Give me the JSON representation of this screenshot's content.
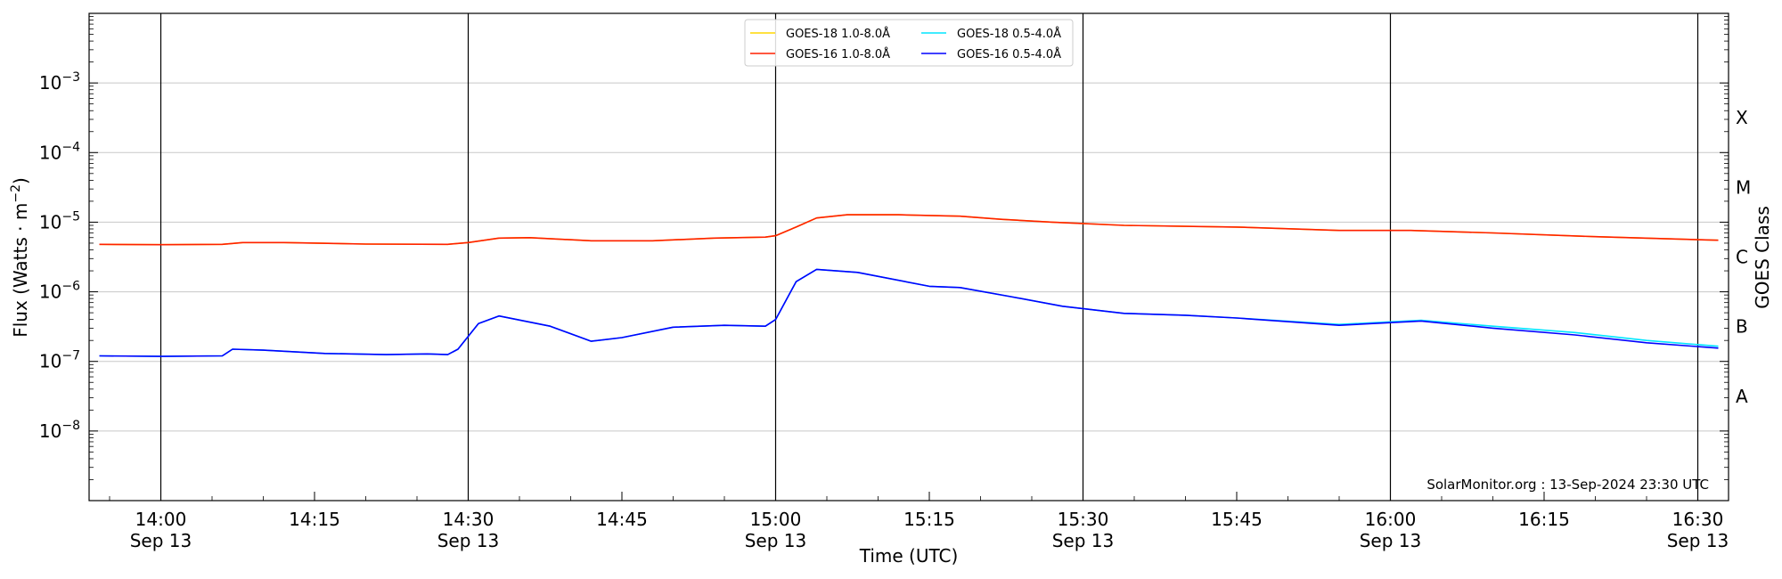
{
  "chart_data": {
    "type": "line",
    "xlabel": "Time (UTC)",
    "ylabel": "Flux (Watts · m",
    "ylabel_sup": "−2",
    "ylabel_tail": ")",
    "right_label": "GOES Class",
    "y_scale": "log",
    "ylim": [
      1e-09,
      0.01
    ],
    "x_domain": [
      "13:53",
      "16:33"
    ],
    "y_ticks": [
      {
        "base": "10",
        "exp": "−3",
        "value": 0.001
      },
      {
        "base": "10",
        "exp": "−4",
        "value": 0.0001
      },
      {
        "base": "10",
        "exp": "−5",
        "value": 1e-05
      },
      {
        "base": "10",
        "exp": "−6",
        "value": 1e-06
      },
      {
        "base": "10",
        "exp": "−7",
        "value": 1e-07
      },
      {
        "base": "10",
        "exp": "−8",
        "value": 1e-08
      }
    ],
    "x_ticks": [
      {
        "time": "14:00",
        "label": "14:00",
        "date": "Sep 13"
      },
      {
        "time": "14:15",
        "label": "14:15",
        "date": ""
      },
      {
        "time": "14:30",
        "label": "14:30",
        "date": "Sep 13"
      },
      {
        "time": "14:45",
        "label": "14:45",
        "date": ""
      },
      {
        "time": "15:00",
        "label": "15:00",
        "date": "Sep 13"
      },
      {
        "time": "15:15",
        "label": "15:15",
        "date": ""
      },
      {
        "time": "15:30",
        "label": "15:30",
        "date": "Sep 13"
      },
      {
        "time": "15:45",
        "label": "15:45",
        "date": ""
      },
      {
        "time": "16:00",
        "label": "16:00",
        "date": "Sep 13"
      },
      {
        "time": "16:15",
        "label": "16:15",
        "date": ""
      },
      {
        "time": "16:30",
        "label": "16:30",
        "date": "Sep 13"
      }
    ],
    "vertical_lines": [
      "14:00",
      "14:30",
      "15:00",
      "15:30",
      "16:00",
      "16:30"
    ],
    "goes_classes": [
      {
        "label": "X",
        "value": 0.000316
      },
      {
        "label": "M",
        "value": 3.16e-05
      },
      {
        "label": "C",
        "value": 3.16e-06
      },
      {
        "label": "B",
        "value": 3.16e-07
      },
      {
        "label": "A",
        "value": 3.16e-08
      }
    ],
    "annotation": "SolarMonitor.org : 13-Sep-2024 23:30 UTC",
    "legend_position": "top-center",
    "grid": "horizontal",
    "series": [
      {
        "name": "GOES-18 1.0-8.0Å",
        "color": "#ffd700",
        "points": [
          [
            "13:54",
            4.8e-06
          ],
          [
            "14:00",
            4.75e-06
          ],
          [
            "14:06",
            4.8e-06
          ],
          [
            "14:08",
            5.1e-06
          ],
          [
            "14:12",
            5.1e-06
          ],
          [
            "14:20",
            4.85e-06
          ],
          [
            "14:28",
            4.8e-06
          ],
          [
            "14:30",
            5.1e-06
          ],
          [
            "14:33",
            5.9e-06
          ],
          [
            "14:36",
            6e-06
          ],
          [
            "14:42",
            5.4e-06
          ],
          [
            "14:48",
            5.4e-06
          ],
          [
            "14:54",
            5.9e-06
          ],
          [
            "14:59",
            6.1e-06
          ],
          [
            "15:00",
            6.4e-06
          ],
          [
            "15:02",
            8.5e-06
          ],
          [
            "15:04",
            1.15e-05
          ],
          [
            "15:07",
            1.28e-05
          ],
          [
            "15:12",
            1.28e-05
          ],
          [
            "15:18",
            1.22e-05
          ],
          [
            "15:22",
            1.1e-05
          ],
          [
            "15:27",
            1e-05
          ],
          [
            "15:34",
            9e-06
          ],
          [
            "15:45",
            8.5e-06
          ],
          [
            "15:55",
            7.6e-06
          ],
          [
            "16:02",
            7.6e-06
          ],
          [
            "16:10",
            7e-06
          ],
          [
            "16:20",
            6.2e-06
          ],
          [
            "16:32",
            5.5e-06
          ]
        ]
      },
      {
        "name": "GOES-18 0.5-4.0Å",
        "color": "#00e5ff",
        "points": [
          [
            "13:54",
            1.2e-07
          ],
          [
            "14:00",
            1.18e-07
          ],
          [
            "14:06",
            1.2e-07
          ],
          [
            "14:07",
            1.5e-07
          ],
          [
            "14:10",
            1.45e-07
          ],
          [
            "14:16",
            1.3e-07
          ],
          [
            "14:22",
            1.25e-07
          ],
          [
            "14:26",
            1.28e-07
          ],
          [
            "14:28",
            1.25e-07
          ],
          [
            "14:29",
            1.5e-07
          ],
          [
            "14:31",
            3.5e-07
          ],
          [
            "14:33",
            4.5e-07
          ],
          [
            "14:38",
            3.2e-07
          ],
          [
            "14:42",
            1.95e-07
          ],
          [
            "14:45",
            2.2e-07
          ],
          [
            "14:50",
            3.1e-07
          ],
          [
            "14:55",
            3.3e-07
          ],
          [
            "14:59",
            3.2e-07
          ],
          [
            "15:00",
            4e-07
          ],
          [
            "15:02",
            1.4e-06
          ],
          [
            "15:04",
            2.1e-06
          ],
          [
            "15:08",
            1.9e-06
          ],
          [
            "15:15",
            1.2e-06
          ],
          [
            "15:18",
            1.15e-06
          ],
          [
            "15:23",
            8.5e-07
          ],
          [
            "15:28",
            6.2e-07
          ],
          [
            "15:34",
            4.9e-07
          ],
          [
            "15:40",
            4.6e-07
          ],
          [
            "15:45",
            4.2e-07
          ],
          [
            "15:55",
            3.4e-07
          ],
          [
            "16:00",
            3.7e-07
          ],
          [
            "16:03",
            3.9e-07
          ],
          [
            "16:10",
            3.2e-07
          ],
          [
            "16:18",
            2.6e-07
          ],
          [
            "16:25",
            2e-07
          ],
          [
            "16:32",
            1.65e-07
          ]
        ]
      },
      {
        "name": "GOES-16 1.0-8.0Å",
        "color": "#ff2000",
        "points": [
          [
            "13:54",
            4.8e-06
          ],
          [
            "14:00",
            4.75e-06
          ],
          [
            "14:06",
            4.8e-06
          ],
          [
            "14:08",
            5.1e-06
          ],
          [
            "14:12",
            5.1e-06
          ],
          [
            "14:20",
            4.85e-06
          ],
          [
            "14:28",
            4.8e-06
          ],
          [
            "14:30",
            5.1e-06
          ],
          [
            "14:33",
            5.9e-06
          ],
          [
            "14:36",
            6e-06
          ],
          [
            "14:42",
            5.4e-06
          ],
          [
            "14:48",
            5.4e-06
          ],
          [
            "14:54",
            5.9e-06
          ],
          [
            "14:59",
            6.1e-06
          ],
          [
            "15:00",
            6.4e-06
          ],
          [
            "15:02",
            8.5e-06
          ],
          [
            "15:04",
            1.15e-05
          ],
          [
            "15:07",
            1.28e-05
          ],
          [
            "15:12",
            1.28e-05
          ],
          [
            "15:18",
            1.22e-05
          ],
          [
            "15:22",
            1.1e-05
          ],
          [
            "15:27",
            1e-05
          ],
          [
            "15:34",
            9e-06
          ],
          [
            "15:45",
            8.5e-06
          ],
          [
            "15:55",
            7.6e-06
          ],
          [
            "16:02",
            7.6e-06
          ],
          [
            "16:10",
            7e-06
          ],
          [
            "16:20",
            6.2e-06
          ],
          [
            "16:32",
            5.5e-06
          ]
        ]
      },
      {
        "name": "GOES-16 0.5-4.0Å",
        "color": "#0000ff",
        "points": [
          [
            "13:54",
            1.2e-07
          ],
          [
            "14:00",
            1.18e-07
          ],
          [
            "14:06",
            1.2e-07
          ],
          [
            "14:07",
            1.5e-07
          ],
          [
            "14:10",
            1.45e-07
          ],
          [
            "14:16",
            1.3e-07
          ],
          [
            "14:22",
            1.25e-07
          ],
          [
            "14:26",
            1.28e-07
          ],
          [
            "14:28",
            1.25e-07
          ],
          [
            "14:29",
            1.5e-07
          ],
          [
            "14:31",
            3.5e-07
          ],
          [
            "14:33",
            4.5e-07
          ],
          [
            "14:38",
            3.2e-07
          ],
          [
            "14:42",
            1.95e-07
          ],
          [
            "14:45",
            2.2e-07
          ],
          [
            "14:50",
            3.1e-07
          ],
          [
            "14:55",
            3.3e-07
          ],
          [
            "14:59",
            3.2e-07
          ],
          [
            "15:00",
            4e-07
          ],
          [
            "15:02",
            1.4e-06
          ],
          [
            "15:04",
            2.1e-06
          ],
          [
            "15:08",
            1.9e-06
          ],
          [
            "15:15",
            1.2e-06
          ],
          [
            "15:18",
            1.15e-06
          ],
          [
            "15:23",
            8.5e-07
          ],
          [
            "15:28",
            6.2e-07
          ],
          [
            "15:34",
            4.9e-07
          ],
          [
            "15:40",
            4.6e-07
          ],
          [
            "15:45",
            4.2e-07
          ],
          [
            "15:55",
            3.3e-07
          ],
          [
            "16:00",
            3.6e-07
          ],
          [
            "16:03",
            3.8e-07
          ],
          [
            "16:10",
            3e-07
          ],
          [
            "16:18",
            2.4e-07
          ],
          [
            "16:25",
            1.85e-07
          ],
          [
            "16:32",
            1.55e-07
          ]
        ]
      }
    ],
    "legend_order": [
      0,
      1,
      2,
      3
    ]
  }
}
